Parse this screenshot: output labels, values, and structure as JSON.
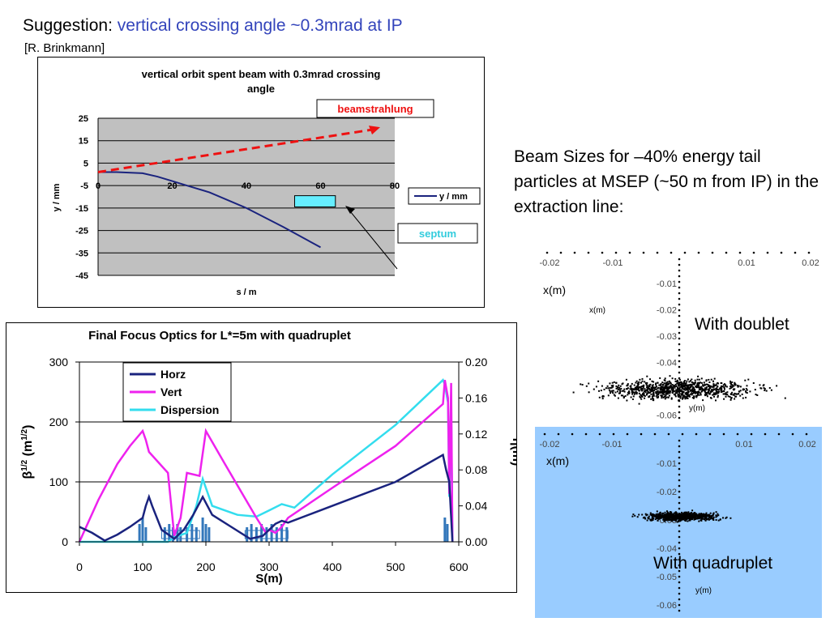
{
  "header": {
    "prefix": "Suggestion:",
    "highlight": "vertical crossing angle ~0.3mrad at IP",
    "accent_color": "#3344bb",
    "citation": "[R. Brinkmann]"
  },
  "side_text": "Beam Sizes for –40% energy tail particles at MSEP (~50 m from IP) in the extraction line:",
  "chart_data": [
    {
      "type": "line",
      "title": "vertical orbit spent beam with 0.3mrad crossing angle",
      "xlabel": "s / m",
      "ylabel": "y / mm",
      "xlim": [
        0,
        80
      ],
      "ylim": [
        -45,
        25
      ],
      "xticks": [
        0,
        20,
        40,
        60,
        80
      ],
      "yticks": [
        25,
        15,
        5,
        -5,
        -15,
        -25,
        -35,
        -45
      ],
      "grid": true,
      "legend": "right",
      "series": [
        {
          "name": "y / mm",
          "color": "#1a237e",
          "x": [
            0,
            5,
            12,
            16,
            20,
            25,
            30,
            40,
            50,
            60
          ],
          "y": [
            1,
            1,
            0.5,
            -1,
            -3,
            -5.5,
            -8,
            -15,
            -23.5,
            -32.5
          ]
        }
      ],
      "overlays": [
        {
          "label": "beamstrahlung",
          "type": "arrow",
          "color": "#ee1111",
          "x": [
            0,
            80
          ],
          "y": [
            1,
            21
          ]
        },
        {
          "label": "septum",
          "type": "box",
          "color": "#66eeff",
          "x": [
            53,
            64
          ],
          "y": [
            -9.5,
            -14.5
          ]
        }
      ]
    },
    {
      "type": "line",
      "title": "Final Focus Optics for L*=5m with quadruplet",
      "xlabel": "S(m)",
      "ylabel": "β1/2 (m1/2)",
      "y2label": "η(m)",
      "xlim": [
        0,
        600
      ],
      "ylim": [
        0,
        300
      ],
      "y2lim": [
        0,
        0.2
      ],
      "xticks": [
        0,
        100,
        200,
        300,
        400,
        500,
        600
      ],
      "yticks": [
        0,
        100,
        200,
        300
      ],
      "y2ticks": [
        "0.00",
        "0.04",
        "0.08",
        "0.12",
        "0.16",
        "0.20"
      ],
      "legend": "top-left",
      "series": [
        {
          "name": "Horz",
          "color": "#1a237e",
          "axis": "left",
          "x": [
            0,
            20,
            40,
            60,
            80,
            100,
            105,
            110,
            115,
            130,
            150,
            165,
            180,
            195,
            200,
            210,
            240,
            270,
            290,
            310,
            320,
            330,
            400,
            500,
            575,
            580,
            585,
            590
          ],
          "y": [
            25,
            15,
            2,
            12,
            25,
            40,
            60,
            75,
            60,
            20,
            5,
            20,
            45,
            75,
            65,
            45,
            25,
            5,
            10,
            30,
            35,
            32,
            60,
            100,
            145,
            120,
            100,
            0
          ]
        },
        {
          "name": "Vert",
          "color": "#ee22ee",
          "axis": "left",
          "x": [
            0,
            30,
            60,
            80,
            100,
            105,
            110,
            140,
            150,
            160,
            170,
            190,
            200,
            230,
            280,
            295,
            300,
            310,
            320,
            330,
            400,
            500,
            575,
            578,
            583,
            585,
            588,
            590
          ],
          "y": [
            0,
            70,
            130,
            160,
            185,
            170,
            150,
            115,
            10,
            40,
            115,
            110,
            185,
            130,
            40,
            15,
            20,
            15,
            25,
            40,
            90,
            160,
            230,
            270,
            240,
            80,
            265,
            0
          ]
        },
        {
          "name": "Dispersion",
          "color": "#33ddee",
          "axis": "right",
          "x": [
            0,
            140,
            150,
            170,
            185,
            195,
            200,
            210,
            230,
            250,
            280,
            300,
            320,
            340,
            400,
            500,
            575,
            578,
            583,
            585,
            588,
            590
          ],
          "y": [
            0,
            0,
            0.005,
            0.01,
            0.04,
            0.07,
            0.06,
            0.04,
            0.035,
            0.03,
            0.028,
            0.035,
            0.042,
            0.038,
            0.075,
            0.13,
            0.18,
            0.175,
            0.155,
            0.05,
            0.15,
            0
          ]
        }
      ],
      "magnets": [
        {
          "x": 95,
          "h": 22
        },
        {
          "x": 100,
          "h": 30
        },
        {
          "x": 105,
          "h": 18
        },
        {
          "x": 135,
          "h": 18
        },
        {
          "x": 142,
          "h": 22
        },
        {
          "x": 148,
          "h": 18
        },
        {
          "x": 155,
          "h": 22
        },
        {
          "x": 160,
          "h": 18
        },
        {
          "x": 170,
          "h": 18
        },
        {
          "x": 178,
          "h": 22
        },
        {
          "x": 185,
          "h": 18
        },
        {
          "x": 195,
          "h": 30
        },
        {
          "x": 200,
          "h": 22
        },
        {
          "x": 205,
          "h": 18
        },
        {
          "x": 265,
          "h": 18
        },
        {
          "x": 272,
          "h": 22
        },
        {
          "x": 280,
          "h": 18
        },
        {
          "x": 288,
          "h": 22
        },
        {
          "x": 296,
          "h": 18
        },
        {
          "x": 304,
          "h": 22
        },
        {
          "x": 312,
          "h": 18
        },
        {
          "x": 320,
          "h": 22
        },
        {
          "x": 328,
          "h": 18
        },
        {
          "x": 578,
          "h": 30
        },
        {
          "x": 582,
          "h": 22
        }
      ]
    },
    {
      "type": "scatter",
      "label": "With doublet",
      "xlabel": "x(m)",
      "ylabel": "y(m)",
      "xticks": [
        "-0.02",
        "-0.01",
        "0.01",
        "0.02"
      ],
      "yticks": [
        "-0.01",
        "-0.02",
        "-0.03",
        "-0.04",
        "-0.05",
        "-0.06"
      ],
      "background": "#ffffff",
      "cloud": {
        "center_x": 0,
        "center_y": -0.05,
        "spread_x": 0.0225,
        "spread_y": 0.004
      }
    },
    {
      "type": "scatter",
      "label": "With quadruplet",
      "xlabel": "x(m)",
      "ylabel": "y(m)",
      "xticks": [
        "-0.02",
        "-0.01",
        "0.01",
        "0.02"
      ],
      "yticks": [
        "-0.01",
        "-0.02",
        "-0.03",
        "-0.04",
        "-0.05",
        "-0.06"
      ],
      "background": "#99ccff",
      "cloud": {
        "center_x": 0,
        "center_y": -0.0285,
        "spread_x": 0.011,
        "spread_y": 0.0016
      }
    }
  ]
}
